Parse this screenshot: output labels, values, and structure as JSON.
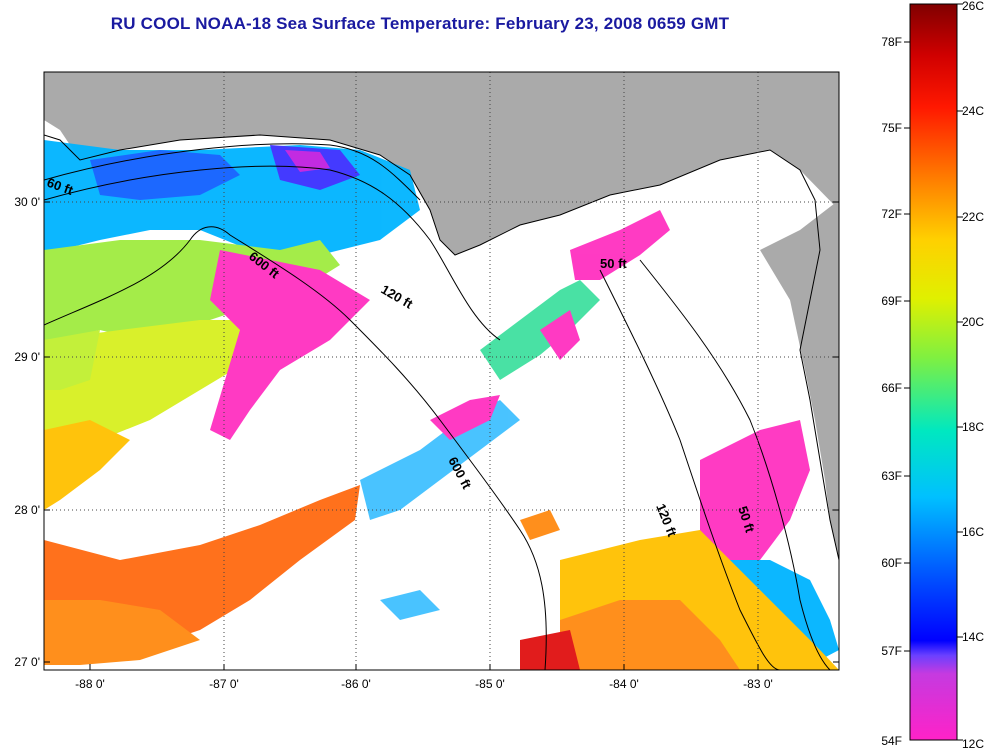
{
  "title": "RU COOL  NOAA-18  Sea Surface Temperature:  February 23, 2008 0659 GMT",
  "map": {
    "lat_labels": [
      "30 0'",
      "29 0'",
      "28 0'",
      "27 0'"
    ],
    "lon_labels": [
      "-88 0'",
      "-87 0'",
      "-86 0'",
      "-85 0'",
      "-84 0'",
      "-83 0'"
    ],
    "lat_values": [
      30,
      29,
      28,
      27
    ],
    "lon_values": [
      -88,
      -87,
      -86,
      -85,
      -84,
      -83
    ],
    "depth_labels": [
      "60 ft",
      "600 ft",
      "120 ft",
      "50 ft",
      "600 ft",
      "120 ft",
      "50 ft"
    ],
    "colors": {
      "land": "#aaaaaa",
      "cloud": "#ffffff",
      "frame": "#000000"
    }
  },
  "colorbar": {
    "fahrenheit": [
      "78F",
      "75F",
      "72F",
      "69F",
      "66F",
      "63F",
      "60F",
      "57F",
      "54F"
    ],
    "celsius": [
      "26C",
      "24C",
      "22C",
      "20C",
      "18C",
      "16C",
      "14C",
      "12C"
    ]
  }
}
